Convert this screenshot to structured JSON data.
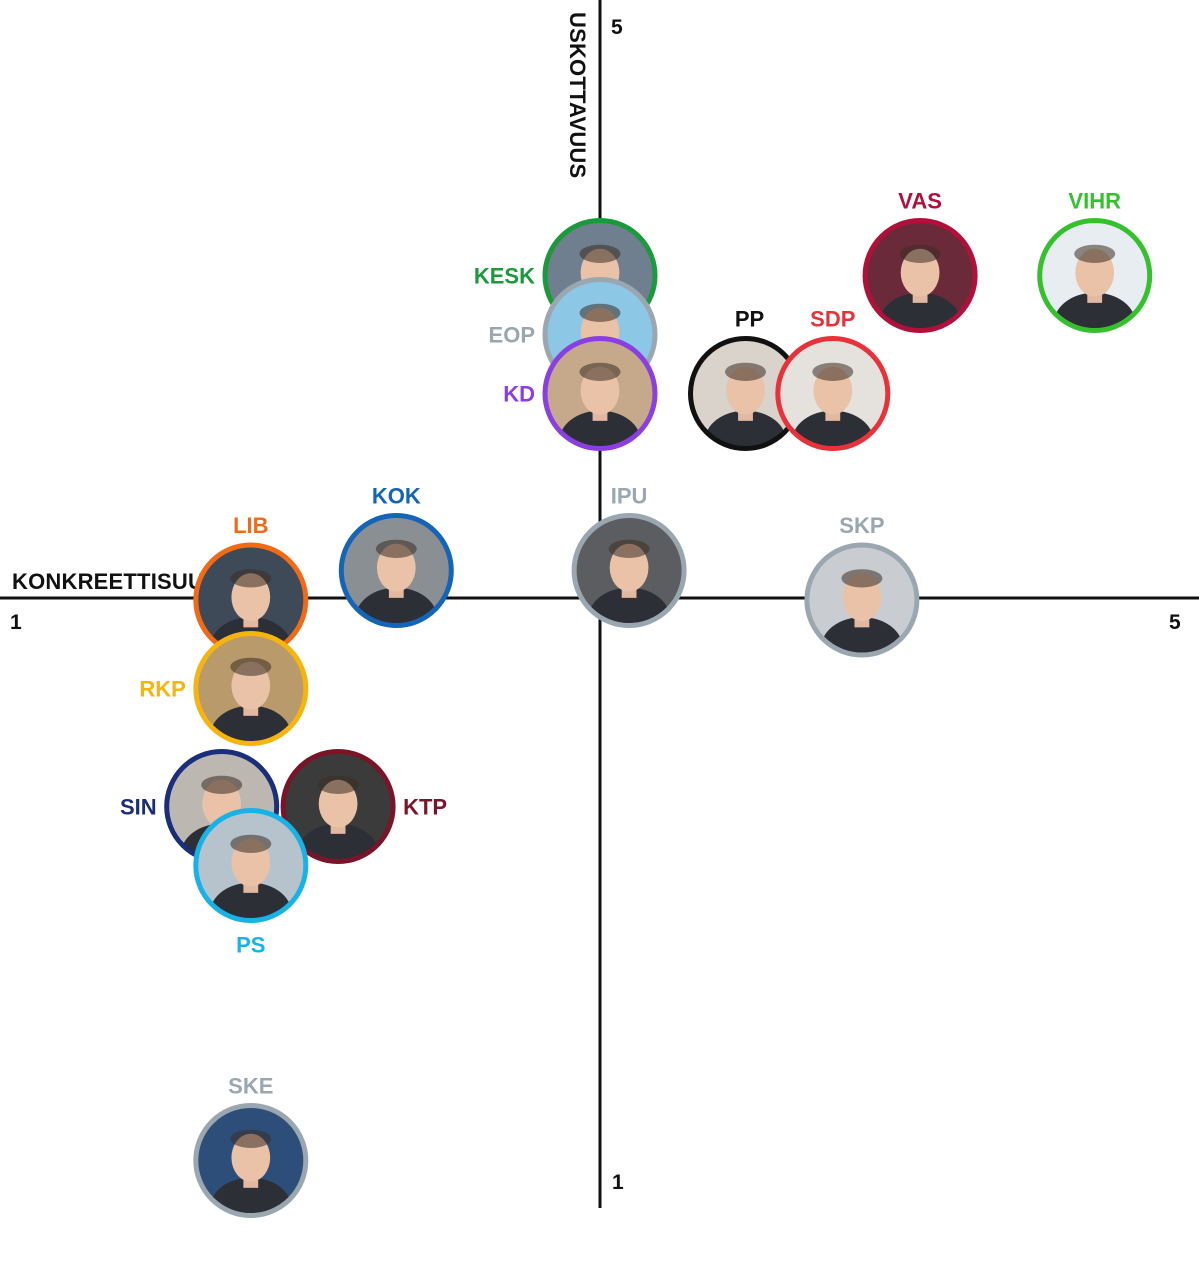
{
  "chart_data": {
    "type": "scatter",
    "xlabel": "KONKREETTISUUS",
    "ylabel": "USKOTTAVUUS",
    "xlim": [
      1,
      5
    ],
    "ylim": [
      1,
      5
    ],
    "x_ticks": [
      "1",
      "5"
    ],
    "y_ticks": [
      "1",
      "5"
    ],
    "points": [
      {
        "party": "KESK",
        "x": 3.0,
        "y": 4.1,
        "color": "#1a9a3a",
        "photo_bg": "#6f7f8f"
      },
      {
        "party": "EOP",
        "x": 3.0,
        "y": 3.9,
        "color": "#9aa7b0",
        "photo_bg": "#8cc7e6"
      },
      {
        "party": "KD",
        "x": 3.0,
        "y": 3.7,
        "color": "#8a3fe0",
        "photo_bg": "#c6a88a"
      },
      {
        "party": "PP",
        "x": 3.5,
        "y": 3.7,
        "color": "#111111",
        "photo_bg": "#d9d3cc"
      },
      {
        "party": "SDP",
        "x": 3.8,
        "y": 3.7,
        "color": "#e8323a",
        "photo_bg": "#e5e2de"
      },
      {
        "party": "VAS",
        "x": 4.1,
        "y": 4.1,
        "color": "#b0103a",
        "photo_bg": "#6b2a3a"
      },
      {
        "party": "VIHR",
        "x": 4.7,
        "y": 4.1,
        "color": "#35c12e",
        "photo_bg": "#e8edf2"
      },
      {
        "party": "KOK",
        "x": 2.3,
        "y": 3.1,
        "color": "#1465b8",
        "photo_bg": "#8a8f93"
      },
      {
        "party": "IPU",
        "x": 3.1,
        "y": 3.1,
        "color": "#9aa7b0",
        "photo_bg": "#5b5d60"
      },
      {
        "party": "SKP",
        "x": 3.9,
        "y": 3.0,
        "color": "#9aa7b0",
        "photo_bg": "#c9cdd1"
      },
      {
        "party": "LIB",
        "x": 1.8,
        "y": 3.0,
        "color": "#f06a18",
        "photo_bg": "#3f4a58"
      },
      {
        "party": "RKP",
        "x": 1.8,
        "y": 2.7,
        "color": "#f6b40f",
        "photo_bg": "#b99a6a"
      },
      {
        "party": "SIN",
        "x": 1.7,
        "y": 2.3,
        "color": "#1a2e7a",
        "photo_bg": "#bcb7b1"
      },
      {
        "party": "KTP",
        "x": 2.1,
        "y": 2.3,
        "color": "#7a1428",
        "photo_bg": "#3b3b3b"
      },
      {
        "party": "PS",
        "x": 1.8,
        "y": 2.1,
        "color": "#17b3e6",
        "photo_bg": "#b7c3cc"
      },
      {
        "party": "SKE",
        "x": 1.8,
        "y": 1.1,
        "color": "#9aa7b0",
        "photo_bg": "#2e4e7a"
      }
    ]
  }
}
